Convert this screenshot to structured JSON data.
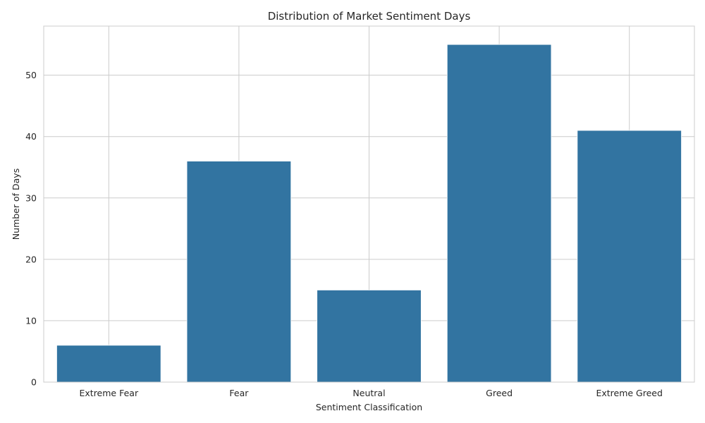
{
  "chart_data": {
    "type": "bar",
    "title": "Distribution of Market Sentiment Days",
    "xlabel": "Sentiment Classification",
    "ylabel": "Number of Days",
    "categories": [
      "Extreme Fear",
      "Fear",
      "Neutral",
      "Greed",
      "Extreme Greed"
    ],
    "values": [
      6,
      36,
      15,
      55,
      41
    ],
    "ylim": [
      0,
      58
    ],
    "yticks": [
      0,
      10,
      20,
      30,
      40,
      50
    ],
    "grid": true,
    "legend": "none",
    "bar_color": "#3274a1"
  }
}
